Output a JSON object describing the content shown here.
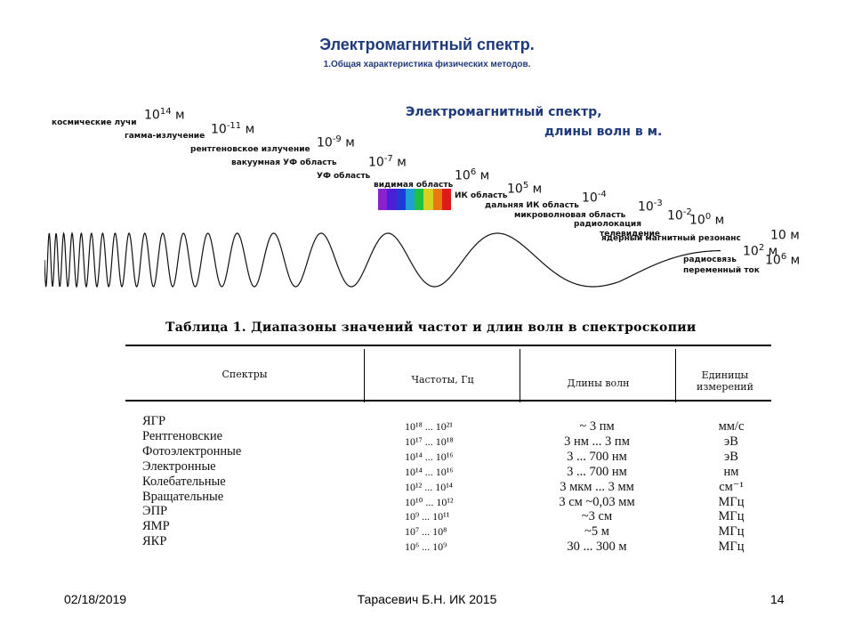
{
  "slide": {
    "title": "Электромагнитный спектр.",
    "subtitle": "1.Общая характеристика физических методов."
  },
  "figure": {
    "heading_line1": "Электромагнитный спектр,",
    "heading_line2": "длины волн в м.",
    "bands": [
      {
        "label": "космические лучи",
        "base": "10",
        "exp": "14",
        "unit": "м"
      },
      {
        "label": "гамма-излучение",
        "base": "10",
        "exp": "-11",
        "unit": "м"
      },
      {
        "label": "рентгеновское излучение",
        "base": "10",
        "exp": "-9",
        "unit": "м"
      },
      {
        "label": "вакуумная УФ область",
        "base": "",
        "exp": "",
        "unit": ""
      },
      {
        "label": "УФ область",
        "base": "10",
        "exp": "-7",
        "unit": "м"
      },
      {
        "label": "видимая область",
        "base": "10",
        "exp": "6",
        "unit": "м"
      },
      {
        "label": "ИК область",
        "base": "10",
        "exp": "5",
        "unit": "м"
      },
      {
        "label": "дальняя ИК область",
        "base": "10",
        "exp": "-4",
        "unit": ""
      },
      {
        "label": "микроволновая область",
        "base": "10",
        "exp": "-3",
        "unit": ""
      },
      {
        "label": "радиолокация",
        "base": "10",
        "exp": "-2",
        "unit": ""
      },
      {
        "label": "телевидение",
        "base": "10",
        "exp": "0",
        "unit": "м"
      },
      {
        "label": "ядерный магнитный резонанс",
        "base": "",
        "exp": "",
        "unit": "10 м"
      },
      {
        "label": "радиосвязь",
        "base": "10",
        "exp": "2",
        "unit": "м"
      },
      {
        "label": "переменный ток",
        "base": "10",
        "exp": "6",
        "unit": "м"
      }
    ],
    "visible_colors": [
      "#8e1fd0",
      "#4a1fd6",
      "#1f3bd6",
      "#1fa0d6",
      "#20c040",
      "#d8d020",
      "#e87a10",
      "#e01a1a"
    ]
  },
  "table": {
    "caption": "Таблица 1. Диапазоны значений частот и длин волн в спектроскопии",
    "headers": [
      "Спектры",
      "Частоты, Гц",
      "Длины волн",
      "Единицы измерений"
    ],
    "rows": [
      {
        "spectrum": "ЯГР",
        "freq": "10¹⁸ ... 10²¹",
        "wavelength": "~ 3 пм",
        "units": "мм/с"
      },
      {
        "spectrum": "Рентгеновские",
        "freq": "10¹⁷ ... 10¹⁸",
        "wavelength": "3 нм ... 3 пм",
        "units": "эВ"
      },
      {
        "spectrum": "Фотоэлектронные",
        "freq": "10¹⁴ ... 10¹⁶",
        "wavelength": "3 ... 700 нм",
        "units": "эВ"
      },
      {
        "spectrum": "Электронные",
        "freq": "10¹⁴ ... 10¹⁶",
        "wavelength": "3 ... 700 нм",
        "units": "нм"
      },
      {
        "spectrum": "Колебательные",
        "freq": "10¹² ... 10¹⁴",
        "wavelength": "3 мкм ... 3 мм",
        "units": "см⁻¹"
      },
      {
        "spectrum": "Вращательные",
        "freq": "10¹⁰ ... 10¹²",
        "wavelength": "3 см ~0,03 мм",
        "units": "МГц"
      },
      {
        "spectrum": "ЭПР",
        "freq": "10⁹ ... 10¹¹",
        "wavelength": "~3 см",
        "units": "МГц"
      },
      {
        "spectrum": "ЯМР",
        "freq": "10⁷ ... 10⁸",
        "wavelength": "~5 м",
        "units": "МГц"
      },
      {
        "spectrum": "ЯКР",
        "freq": "10⁶ ... 10⁹",
        "wavelength": "30 ... 300 м",
        "units": "МГц"
      }
    ]
  },
  "footer": {
    "date": "02/18/2019",
    "author": "Тарасевич Б.Н. ИК 2015",
    "page": "14"
  }
}
